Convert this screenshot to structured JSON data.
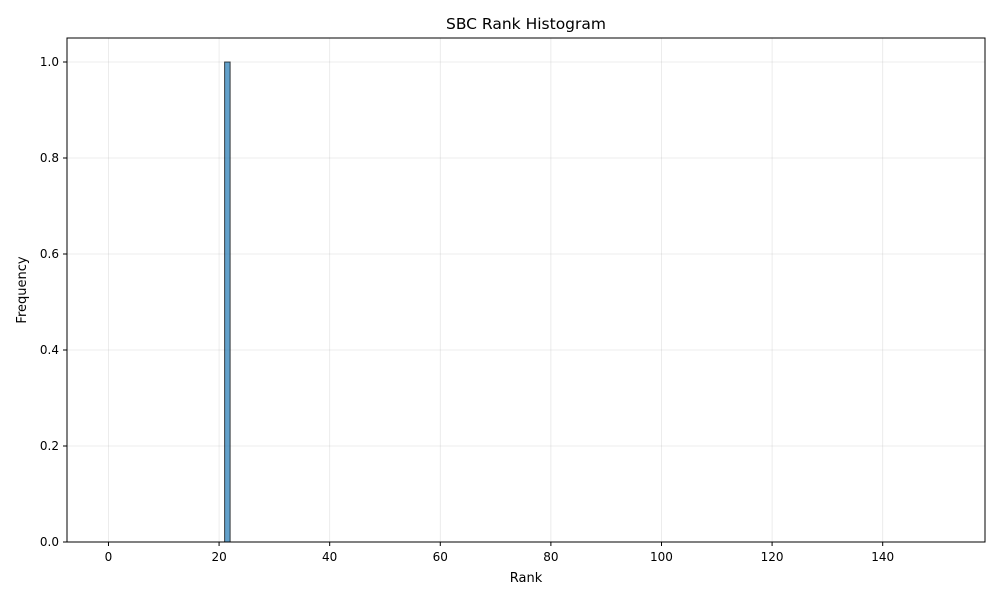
{
  "chart_data": {
    "type": "bar",
    "title": "SBC Rank Histogram",
    "xlabel": "Rank",
    "ylabel": "Frequency",
    "xlim": [
      -7.5,
      158.5
    ],
    "ylim": [
      0,
      1.05
    ],
    "x_ticks": [
      0,
      20,
      40,
      60,
      80,
      100,
      120,
      140
    ],
    "y_ticks": [
      0.0,
      0.2,
      0.4,
      0.6,
      0.8,
      1.0
    ],
    "y_tick_labels": [
      "0.0",
      "0.2",
      "0.4",
      "0.6",
      "0.8",
      "1.0"
    ],
    "bin_range": [
      0,
      151
    ],
    "bins": [
      {
        "x_start": 21,
        "x_end": 22,
        "value": 1
      }
    ],
    "bar_color": "#1f77b4",
    "bar_edge_color": "#000000",
    "grid": true
  }
}
